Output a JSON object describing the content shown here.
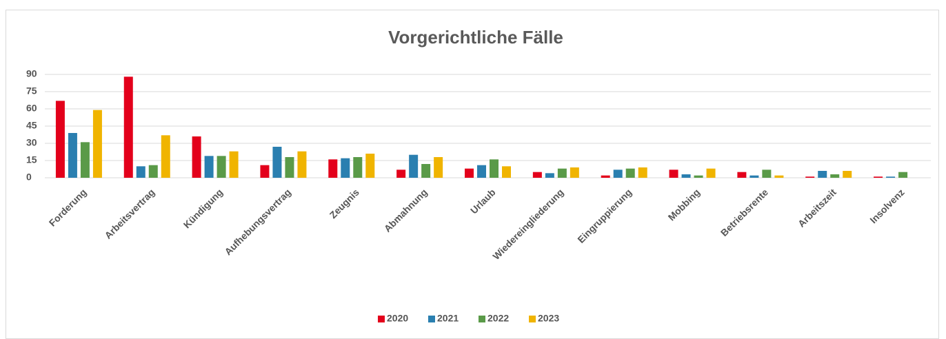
{
  "chart_data": {
    "type": "bar",
    "title": "Vorgerichtliche Fälle",
    "categories": [
      "Forderung",
      "Arbeitsvertrag",
      "Kündigung",
      "Aufhebungsvertrag",
      "Zeugnis",
      "Abmahnung",
      "Urlaub",
      "Wiedereingliederung",
      "Eingruppierung",
      "Mobbing",
      "Betriebsrente",
      "Arbeitszeit",
      "Insolvenz"
    ],
    "series": [
      {
        "name": "2020",
        "color": "#e3001b",
        "values": [
          67,
          88,
          36,
          11,
          16,
          7,
          8,
          5,
          2,
          7,
          5,
          1,
          1
        ]
      },
      {
        "name": "2021",
        "color": "#2a7fb0",
        "values": [
          39,
          10,
          19,
          27,
          17,
          20,
          11,
          4,
          7,
          3,
          2,
          6,
          1
        ]
      },
      {
        "name": "2022",
        "color": "#5a9a48",
        "values": [
          31,
          11,
          19,
          18,
          18,
          12,
          16,
          8,
          8,
          2,
          7,
          3,
          5
        ]
      },
      {
        "name": "2023",
        "color": "#f0b400",
        "values": [
          59,
          37,
          23,
          23,
          21,
          18,
          10,
          9,
          9,
          8,
          2,
          6,
          0
        ]
      }
    ],
    "ylim": [
      0,
      90
    ],
    "yticks": [
      0,
      15,
      30,
      45,
      60,
      75,
      90
    ],
    "grid": true,
    "legend": "bottom"
  }
}
